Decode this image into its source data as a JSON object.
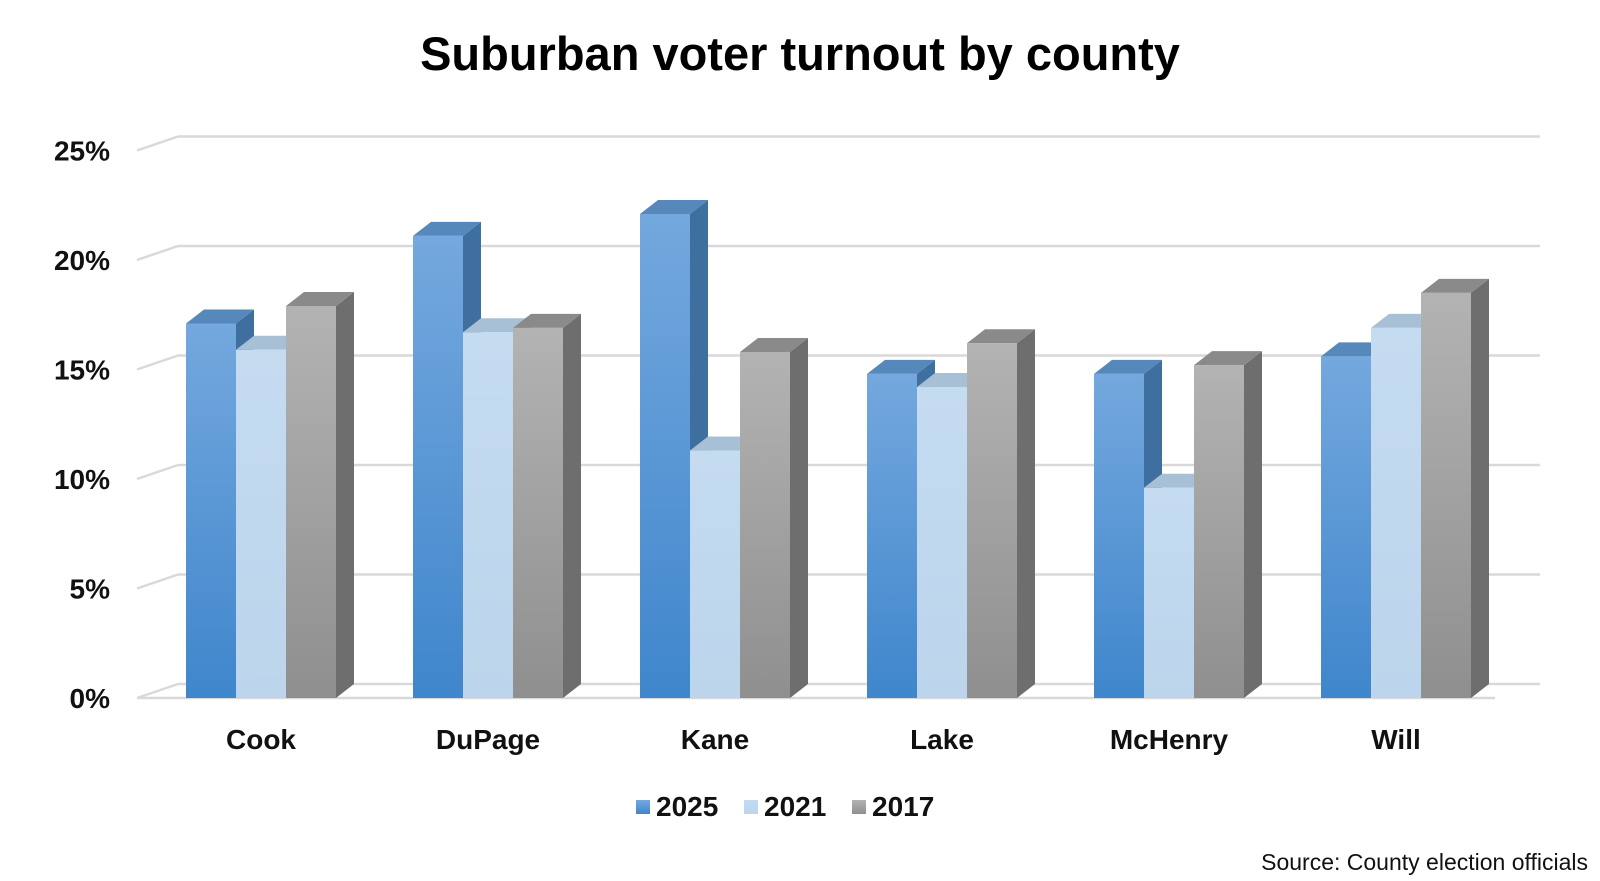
{
  "chart_data": {
    "type": "bar",
    "title": "Suburban voter turnout by county",
    "categories": [
      "Cook",
      "DuPage",
      "Kane",
      "Lake",
      "McHenry",
      "Will"
    ],
    "series": [
      {
        "name": "2025",
        "values": [
          17.1,
          21.1,
          22.1,
          14.8,
          14.8,
          15.6
        ],
        "color": "#5a9bd5"
      },
      {
        "name": "2021",
        "values": [
          15.9,
          16.7,
          11.3,
          14.2,
          9.6,
          16.9
        ],
        "color": "#bdd7ee"
      },
      {
        "name": "2017",
        "values": [
          17.9,
          16.9,
          15.8,
          16.2,
          15.2,
          18.5
        ],
        "color": "#a5a5a5"
      }
    ],
    "yticks": [
      "0%",
      "5%",
      "10%",
      "15%",
      "20%",
      "25%"
    ],
    "ylim": [
      0,
      25
    ],
    "xlabel": "",
    "ylabel": "",
    "grid": true,
    "legend_position": "bottom",
    "source": "Source: County election officials"
  }
}
